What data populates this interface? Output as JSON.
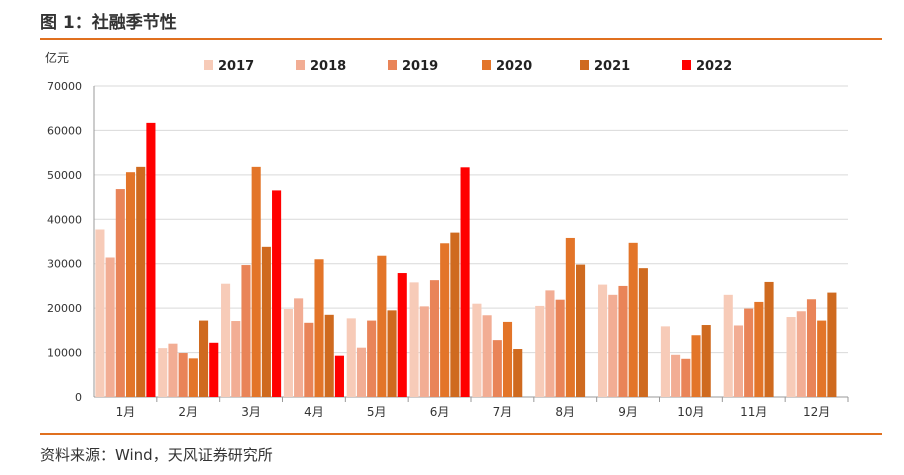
{
  "header": {
    "title": "图 1：社融季节性"
  },
  "footer": {
    "source": "资料来源：Wind，天风证券研究所"
  },
  "colors": {
    "accent": "#e0701f",
    "series": [
      "#f7cbb8",
      "#f2ad94",
      "#e98458",
      "#e37529",
      "#cf6a1f",
      "#ff0000"
    ]
  },
  "chart_data": {
    "type": "bar",
    "ylabel": "亿元",
    "ylim": [
      0,
      70000
    ],
    "yticks": [
      0,
      10000,
      20000,
      30000,
      40000,
      50000,
      60000,
      70000
    ],
    "grid": true,
    "legend": "top",
    "categories": [
      "1月",
      "2月",
      "3月",
      "4月",
      "5月",
      "6月",
      "7月",
      "8月",
      "9月",
      "10月",
      "11月",
      "12月"
    ],
    "series": [
      {
        "name": "2017",
        "values": [
          37700,
          11000,
          25500,
          19800,
          17700,
          25800,
          21000,
          20500,
          25300,
          15900,
          23000,
          18000
        ]
      },
      {
        "name": "2018",
        "values": [
          31400,
          12000,
          17100,
          22200,
          11100,
          20400,
          18400,
          24000,
          23000,
          9500,
          16100,
          19300
        ]
      },
      {
        "name": "2019",
        "values": [
          46800,
          9900,
          29700,
          16700,
          17200,
          26300,
          12800,
          21900,
          25000,
          8600,
          19900,
          22000
        ]
      },
      {
        "name": "2020",
        "values": [
          50600,
          8700,
          51800,
          31000,
          31800,
          34600,
          16900,
          35800,
          34700,
          13900,
          21400,
          17200
        ]
      },
      {
        "name": "2021",
        "values": [
          51800,
          17200,
          33800,
          18500,
          19500,
          37000,
          10800,
          29800,
          29000,
          16200,
          25900,
          23500
        ]
      },
      {
        "name": "2022",
        "values": [
          61700,
          12200,
          46500,
          9300,
          27900,
          51700,
          null,
          null,
          null,
          null,
          null,
          null
        ]
      }
    ]
  }
}
